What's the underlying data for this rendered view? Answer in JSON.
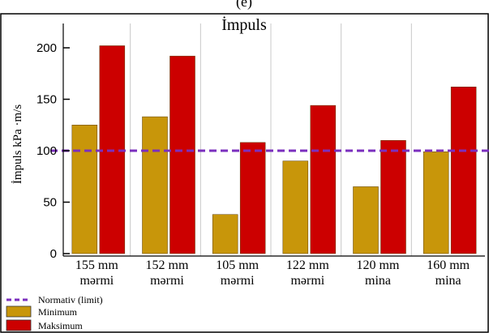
{
  "panel_label": "(e)",
  "chart_data": {
    "type": "bar",
    "title": "İmpuls",
    "ylabel": "İmpuls kPa ·m/s",
    "xlabel": "",
    "ylim": [
      0,
      220
    ],
    "yticks": [
      0,
      50,
      100,
      150,
      200
    ],
    "grid": "vertical lines between categories",
    "legend_position": "bottom-left",
    "categories": [
      [
        "155 mm",
        "mərmi"
      ],
      [
        "152 mm",
        "mərmi"
      ],
      [
        "105 mm",
        "mərmi"
      ],
      [
        "122 mm",
        "mərmi"
      ],
      [
        "120 mm",
        "mina"
      ],
      [
        "160 mm",
        "mina"
      ]
    ],
    "series": [
      {
        "name": "Minimum",
        "color": "#c8960a",
        "values": [
          125,
          133,
          38,
          90,
          65,
          99
        ]
      },
      {
        "name": "Maksimum",
        "color": "#cc0000",
        "values": [
          202,
          192,
          108,
          144,
          110,
          162
        ]
      }
    ],
    "reference_line": {
      "name": "Normativ (limit)",
      "value": 100,
      "color": "#7b2fbe",
      "style": "dashed"
    }
  }
}
